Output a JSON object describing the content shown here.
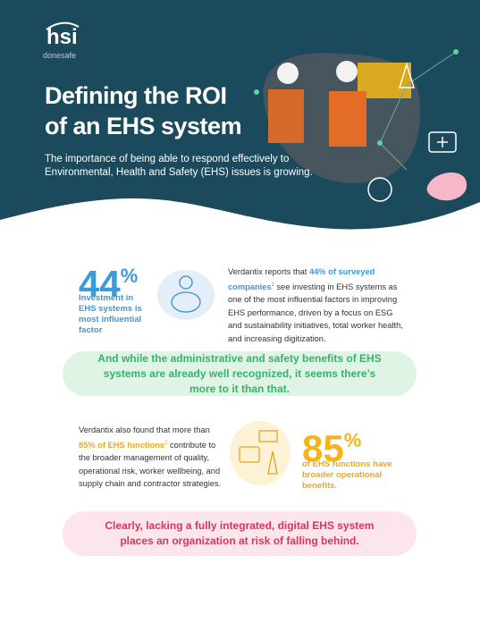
{
  "header": {
    "logo": "hsi",
    "logo_sub": "donesafe",
    "title_line1": "Defining the ROI",
    "title_line2": "of an EHS system",
    "subtitle_line1": "The importance of being able to respond effectively to",
    "subtitle_line2": "Environmental, Health and Safety (EHS) issues is growing."
  },
  "stat1": {
    "number": "44",
    "unit": "%",
    "label": "Investment in EHS systems is most influential factor",
    "text_before": "Verdantix reports that",
    "highlight": "44% of surveyed companies",
    "footnote": "1",
    "text_after": "see investing in EHS systems as one of the most influential factors in improving EHS performance, driven by a focus on ESG and sustainability initiatives, total worker health, and increasing digitization."
  },
  "callout1": "And while the administrative and safety benefits of EHS systems are already well recognized, it seems there’s more to it than that.",
  "stat2": {
    "text_before": "Verdantix also found that more than",
    "highlight": "85% of EHS functions",
    "footnote": "2",
    "text_after": "contribute to the broader management of quality, operational risk, worker wellbeing, and supply chain and contractor strategies.",
    "number": "85",
    "unit": "%",
    "label": "of EHS functions have broader operational benefits."
  },
  "callout2": "Clearly, lacking a fully integrated, digital EHS system places an organization at risk of falling behind."
}
